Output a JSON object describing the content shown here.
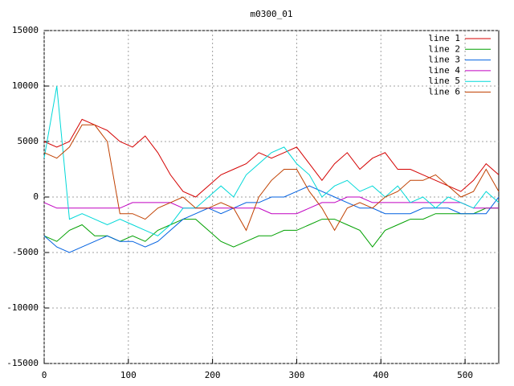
{
  "chart_data": {
    "type": "line",
    "title": "m0300_01",
    "x": [
      0,
      15,
      30,
      45,
      60,
      75,
      90,
      105,
      120,
      135,
      150,
      165,
      180,
      195,
      210,
      225,
      240,
      255,
      270,
      285,
      300,
      315,
      330,
      345,
      360,
      375,
      390,
      405,
      420,
      435,
      450,
      465,
      480,
      495,
      510,
      525,
      540
    ],
    "series": [
      {
        "name": "line 1",
        "color": "#d40000",
        "values": [
          5000,
          4500,
          5000,
          7000,
          6500,
          6000,
          5000,
          4500,
          5500,
          4000,
          2000,
          500,
          0,
          1000,
          2000,
          2500,
          3000,
          4000,
          3500,
          4000,
          4500,
          3000,
          1500,
          3000,
          4000,
          2500,
          3500,
          4000,
          2500,
          2500,
          2000,
          1500,
          1000,
          500,
          1500,
          3000,
          2000
        ]
      },
      {
        "name": "line 2",
        "color": "#00a000",
        "values": [
          -3500,
          -4000,
          -3000,
          -2500,
          -3500,
          -3500,
          -4000,
          -3500,
          -4000,
          -3000,
          -2500,
          -2000,
          -2000,
          -3000,
          -4000,
          -4500,
          -4000,
          -3500,
          -3500,
          -3000,
          -3000,
          -2500,
          -2000,
          -2000,
          -2500,
          -3000,
          -4500,
          -3000,
          -2500,
          -2000,
          -2000,
          -1500,
          -1500,
          -1500,
          -1500,
          -1000,
          -1000
        ]
      },
      {
        "name": "line 3",
        "color": "#0060e0",
        "values": [
          -3500,
          -4500,
          -5000,
          -4500,
          -4000,
          -3500,
          -4000,
          -4000,
          -4500,
          -4000,
          -3000,
          -2000,
          -1500,
          -1000,
          -1500,
          -1000,
          -500,
          -500,
          0,
          0,
          500,
          1000,
          500,
          0,
          -500,
          -1000,
          -1000,
          -1500,
          -1500,
          -1500,
          -1000,
          -1000,
          -1000,
          -1500,
          -1500,
          -1500,
          0
        ]
      },
      {
        "name": "line 4",
        "color": "#c000c0",
        "values": [
          -500,
          -1000,
          -1000,
          -1000,
          -1000,
          -1000,
          -1000,
          -500,
          -500,
          -500,
          -500,
          -1000,
          -1000,
          -1000,
          -1000,
          -1000,
          -1000,
          -1000,
          -1500,
          -1500,
          -1500,
          -1000,
          -500,
          -500,
          0,
          0,
          -500,
          -500,
          -500,
          -500,
          -500,
          -500,
          -500,
          -500,
          -1000,
          -1000,
          -1000
        ]
      },
      {
        "name": "line 5",
        "color": "#00d8d8",
        "values": [
          3500,
          10000,
          -2000,
          -1500,
          -2000,
          -2500,
          -2000,
          -2500,
          -3000,
          -3500,
          -2500,
          -1000,
          -1000,
          0,
          1000,
          0,
          2000,
          3000,
          4000,
          4500,
          3000,
          2000,
          0,
          1000,
          1500,
          500,
          1000,
          0,
          1000,
          -500,
          0,
          -1000,
          0,
          -500,
          -1000,
          500,
          -500
        ]
      },
      {
        "name": "line 6",
        "color": "#c04000",
        "values": [
          4000,
          3500,
          4500,
          6500,
          6500,
          5000,
          -1500,
          -1500,
          -2000,
          -1000,
          -500,
          0,
          -1000,
          -1000,
          -500,
          -1000,
          -3000,
          0,
          1500,
          2500,
          2500,
          500,
          -1000,
          -3000,
          -1000,
          -500,
          -1000,
          0,
          500,
          1500,
          1500,
          2000,
          1000,
          0,
          500,
          2500,
          500
        ]
      }
    ],
    "xlim": [
      0,
      540
    ],
    "xticks": [
      0,
      100,
      200,
      300,
      400,
      500
    ],
    "ylim": [
      -15000,
      15000
    ],
    "yticks": [
      -15000,
      -10000,
      -5000,
      0,
      5000,
      10000,
      15000
    ],
    "grid": true,
    "legend": "top-right"
  }
}
